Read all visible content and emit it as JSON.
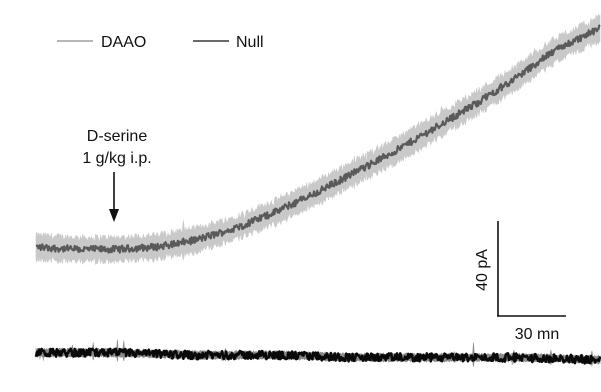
{
  "chart_data": {
    "type": "line",
    "legend": {
      "placement": "top-left",
      "entries": [
        {
          "label": "DAAO",
          "color": "#8c8c8c"
        },
        {
          "label": "Null",
          "color": "#111111"
        }
      ]
    },
    "annotation": {
      "line1": "D-serine",
      "line2": "1 g/kg i.p.",
      "time_min": 19.0
    },
    "scale_bar": {
      "vertical_value": 40,
      "vertical_label": "40 pA",
      "horizontal_value": 30,
      "horizontal_label": "30 mn"
    },
    "xlim": [
      0,
      141
    ],
    "ylim": [
      -10,
      140
    ],
    "grid": false,
    "series": [
      {
        "name": "DAAO",
        "role": "mean trace with shaded noise band",
        "color": "#5a5a5a",
        "band_color": "#c9c9c9",
        "band_halfwidth": 5,
        "noise": 3,
        "x": [
          0,
          10,
          20,
          30,
          40,
          50,
          60,
          70,
          80,
          90,
          100,
          110,
          120,
          130,
          141
        ],
        "y": [
          5,
          4,
          4,
          5,
          8,
          13,
          20,
          28,
          37,
          46,
          56,
          66,
          77,
          89,
          98
        ]
      },
      {
        "name": "Null",
        "role": "flat baseline trace",
        "color": "#0a0a0a",
        "band_color": "#8a8a8a",
        "band_halfwidth": 1.5,
        "noise": 3.5,
        "x": [
          0,
          20,
          40,
          60,
          80,
          100,
          120,
          141
        ],
        "y": [
          -40,
          -40,
          -41,
          -41,
          -42,
          -42,
          -42,
          -43
        ]
      }
    ]
  }
}
